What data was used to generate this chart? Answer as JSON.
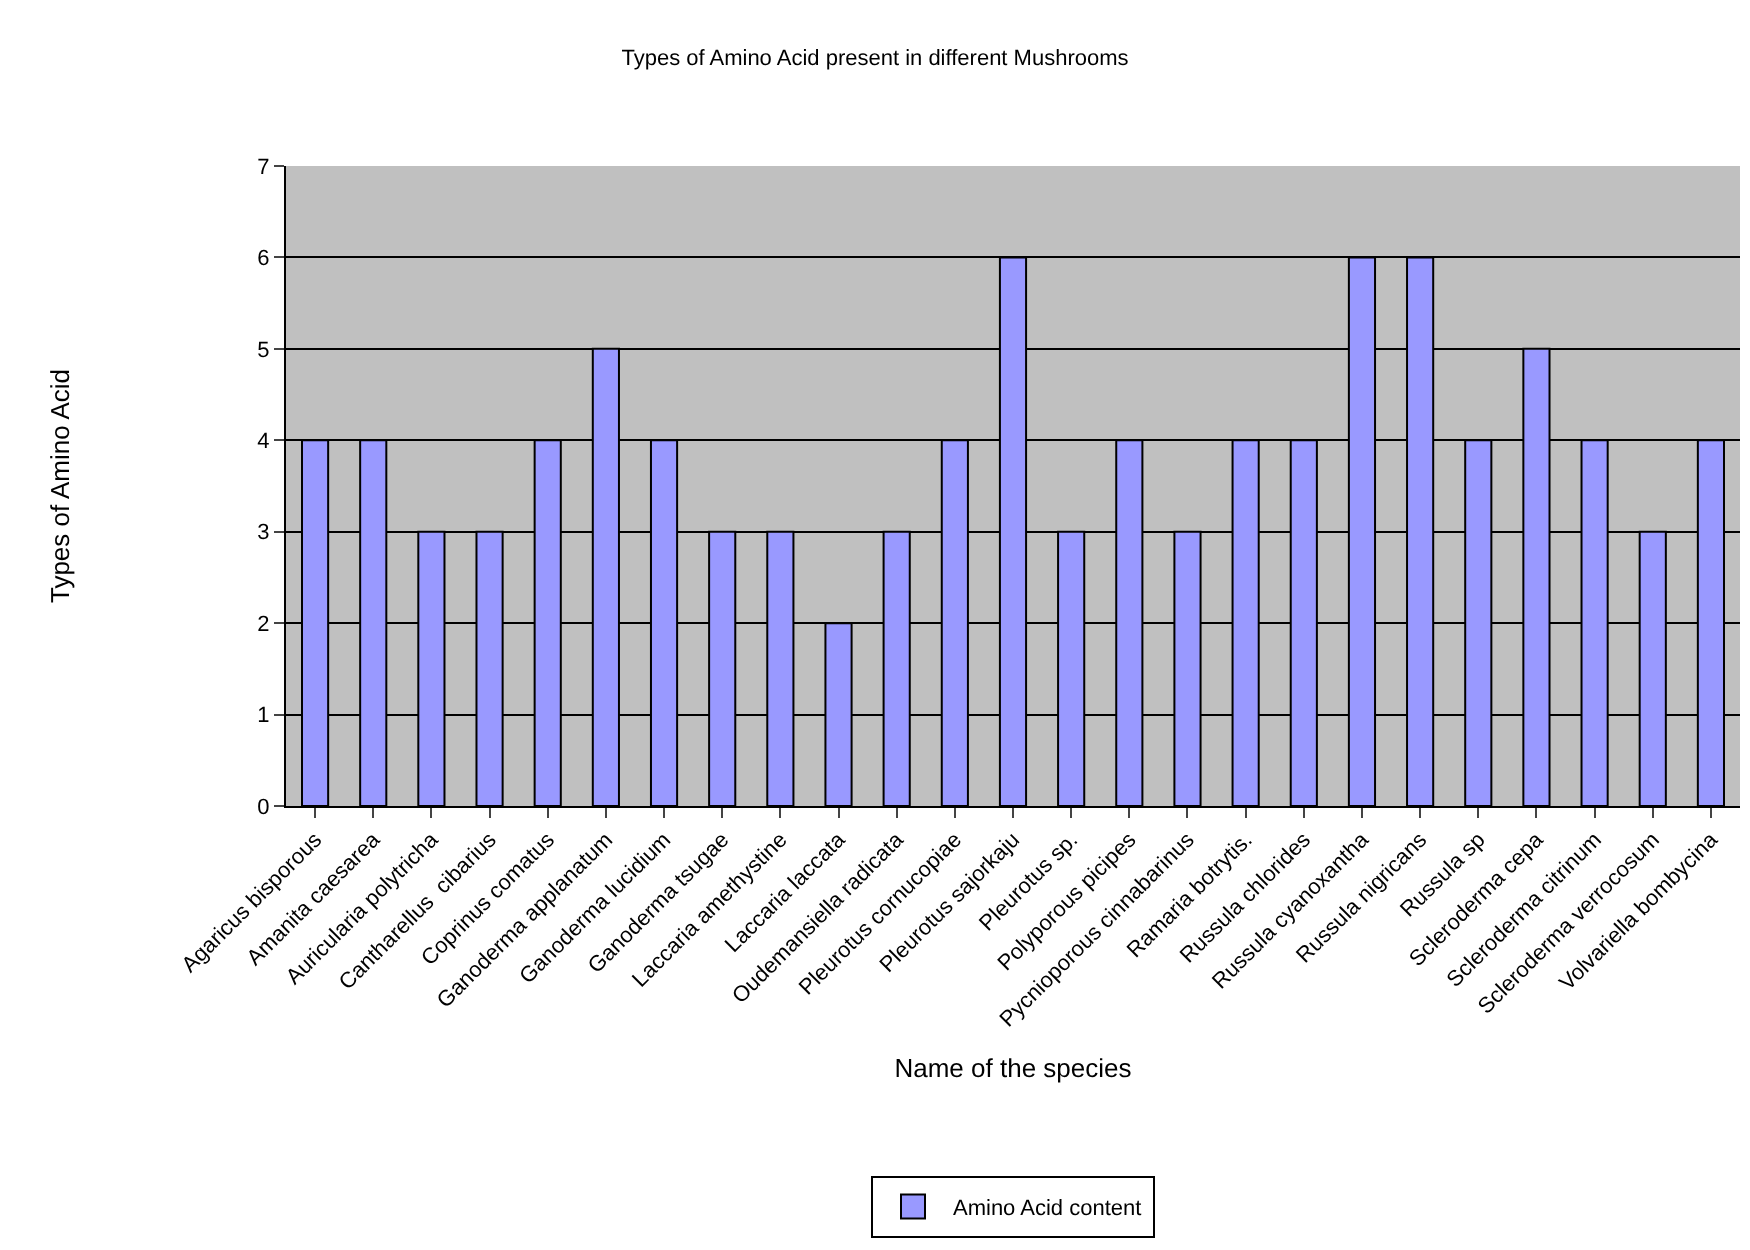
{
  "chart_data": {
    "type": "bar",
    "title": "Types of Amino Acid present in different Mushrooms",
    "xlabel": "Name of the species",
    "ylabel": "Types of Amino Acid",
    "categories": [
      "Agaricus bisporous",
      "Amanita caesarea",
      "Auricularia polytricha",
      "Cantharellus  cibarius",
      "Coprinus comatus",
      "Ganoderma applanatum",
      "Ganoderma lucidium",
      "Ganoderma tsugae",
      "Laccaria amethystine",
      "Laccaria laccata",
      "Oudemansiella radicata",
      "Pleurotus cornucopiae",
      "Pleurotus sajorkaju",
      "Pleurotus sp.",
      "Polyporous picipes",
      "Pycnioporous cinnabarinus",
      "Ramaria botrytis.",
      "Russula chlorides",
      "Russula cyanoxantha",
      "Russula nigricans",
      "Russula sp",
      "Scleroderma cepa",
      "Scleroderma citrinum",
      "Scleroderma verrocosum",
      "Volvariella bombycina"
    ],
    "series": [
      {
        "name": "Amino Acid content",
        "color": "#9999ff",
        "values": [
          4,
          4,
          3,
          3,
          4,
          5,
          4,
          3,
          3,
          2,
          3,
          4,
          6,
          3,
          4,
          3,
          4,
          4,
          6,
          6,
          4,
          5,
          4,
          3,
          4
        ]
      }
    ],
    "ylim": [
      0,
      7
    ],
    "yticks": [
      0,
      1,
      2,
      3,
      4,
      5,
      6,
      7
    ],
    "grid": "y",
    "legend": "bottom"
  }
}
